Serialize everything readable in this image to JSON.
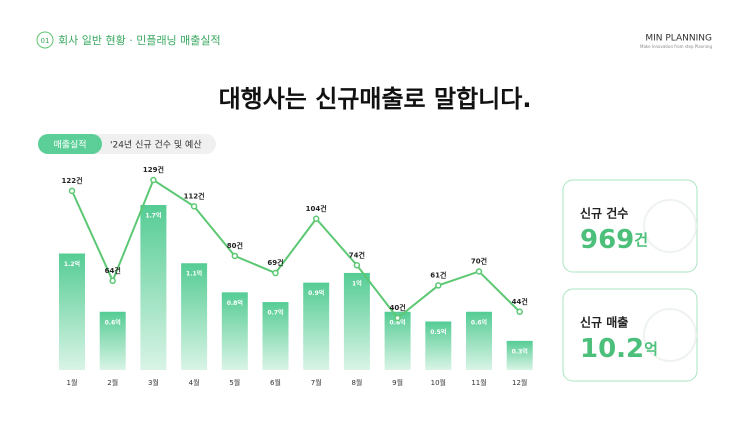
{
  "header": {
    "badge": "01",
    "section": "회사 일반 현황 · 민플래닝 매출실적",
    "brand": "MIN PLANNING",
    "brand_sub": "Make Innovation from step Planning"
  },
  "title": "대행사는 신규매출로 말합니다.",
  "tabs": {
    "active": "매출실적",
    "caption": "'24년 신규 건수 및 예산"
  },
  "cards": [
    {
      "label": "신규 건수",
      "value": "969",
      "unit": "건"
    },
    {
      "label": "신규 매출",
      "value": "10.2",
      "unit": "억"
    }
  ],
  "chart_data": {
    "type": "combo",
    "categories": [
      "1월",
      "2월",
      "3월",
      "4월",
      "5월",
      "6월",
      "7월",
      "8월",
      "9월",
      "10월",
      "11월",
      "12월"
    ],
    "series": [
      {
        "type": "bar",
        "color": "#5ccf98",
        "values": [
          1.2,
          0.6,
          1.7,
          1.1,
          0.8,
          0.7,
          0.9,
          1,
          0.6,
          0.5,
          0.6,
          0.3
        ],
        "value_labels": [
          "1.2억",
          "0.6억",
          "1.7억",
          "1.1억",
          "0.8억",
          "0.7억",
          "0.9억",
          "1억",
          "0.6억",
          "0.5억",
          "0.6억",
          "0.3억"
        ]
      },
      {
        "type": "line",
        "color": "#5cc874",
        "values": [
          122,
          64,
          129,
          112,
          80,
          69,
          104,
          74,
          40,
          61,
          70,
          44
        ],
        "value_labels": [
          "122건",
          "64건",
          "129건",
          "112건",
          "80건",
          "69건",
          "104건",
          "74건",
          "40건",
          "61건",
          "70건",
          "44건"
        ]
      }
    ]
  }
}
